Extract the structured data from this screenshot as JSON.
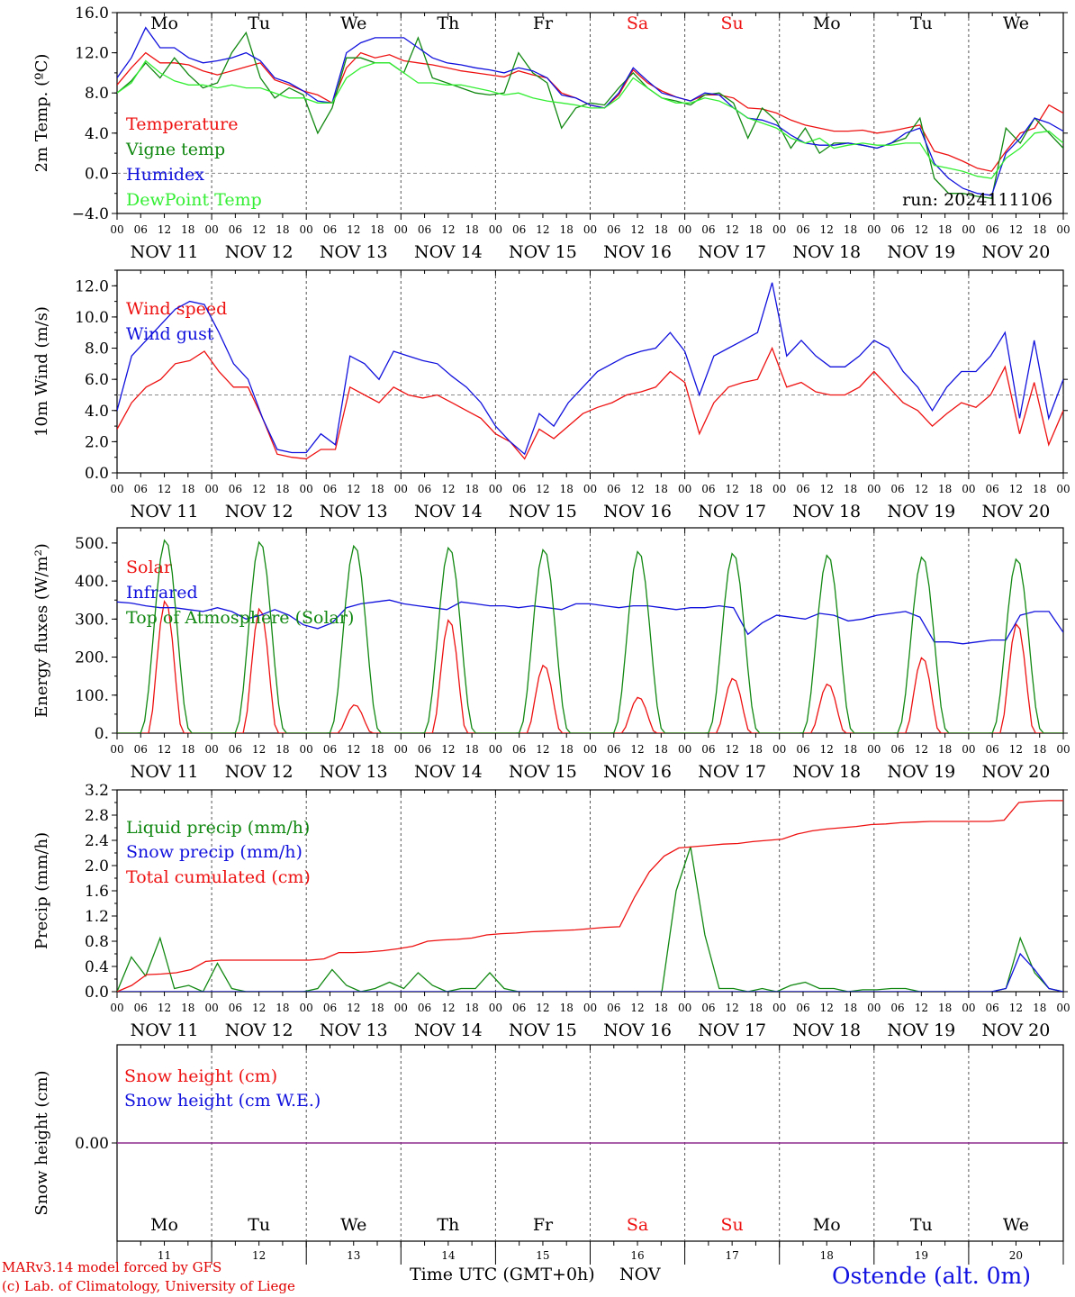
{
  "colors": {
    "red": "#ee1111",
    "green": "#118811",
    "blue": "#1111dd",
    "light_green": "#33ee33",
    "purple": "#882288",
    "axis": "#000000",
    "grid": "#555555",
    "weekend": "#ee1111"
  },
  "days": {
    "weekday": [
      "Mo",
      "Tu",
      "We",
      "Th",
      "Fr",
      "Sa",
      "Su",
      "Mo",
      "Tu",
      "We"
    ],
    "weekend_flags": [
      false,
      false,
      false,
      false,
      false,
      true,
      true,
      false,
      false,
      false
    ],
    "dates": [
      "NOV 11",
      "NOV 12",
      "NOV 13",
      "NOV 14",
      "NOV 15",
      "NOV 16",
      "NOV 17",
      "NOV 18",
      "NOV 19",
      "NOV 20"
    ],
    "day_numbers": [
      "11",
      "12",
      "13",
      "14",
      "15",
      "16",
      "17",
      "18",
      "19",
      "20"
    ],
    "hour_ticks": [
      "00",
      "06",
      "12",
      "18"
    ],
    "final_tick": "00"
  },
  "footer": {
    "line1": "MARv3.14 model forced by GFS",
    "line2": "(c) Lab. of Climatology, University of Liege",
    "xlabel": "Time UTC (GMT+0h)",
    "month": "NOV",
    "station": "Ostende (alt. 0m)"
  },
  "chart_data": [
    {
      "id": "temp",
      "type": "line",
      "ylabel": "2m Temp. (ºC)",
      "ylim": [
        -4,
        16
      ],
      "yticks": [
        "16.0",
        "12.0",
        "8.0",
        "4.0",
        "0.0",
        "−4.0"
      ],
      "ytick_values": [
        16,
        12,
        8,
        4,
        0,
        -4
      ],
      "ref_line": 0,
      "annotation": "run: 2024111106",
      "show_weekdays": true,
      "x_hours_step": 6,
      "series": [
        {
          "name": "Temperature",
          "color": "red",
          "values": [
            8.8,
            10.5,
            12.0,
            11.0,
            11.0,
            10.8,
            10.2,
            9.8,
            10.2,
            10.6,
            11.0,
            9.3,
            8.8,
            8.2,
            7.8,
            7.0,
            10.5,
            12.0,
            11.5,
            11.8,
            11.2,
            11.0,
            10.8,
            10.5,
            10.2,
            10.0,
            9.8,
            9.6,
            10.2,
            9.8,
            9.5,
            8.0,
            7.5,
            6.8,
            6.5,
            7.8,
            10.3,
            9.0,
            8.2,
            7.6,
            7.2,
            7.8,
            7.8,
            7.5,
            6.5,
            6.4,
            6.0,
            5.3,
            4.8,
            4.5,
            4.2,
            4.2,
            4.3,
            4.0,
            4.2,
            4.5,
            4.8,
            2.2,
            1.8,
            1.2,
            0.5,
            0.2,
            2.2,
            4.0,
            4.5,
            6.8,
            6.0
          ]
        },
        {
          "name": "Vigne temp",
          "color": "green",
          "values": [
            8.0,
            9.2,
            11.0,
            9.5,
            11.5,
            9.8,
            8.5,
            9.0,
            12.0,
            14.0,
            9.5,
            7.5,
            8.5,
            7.8,
            4.0,
            6.5,
            11.5,
            11.5,
            11.0,
            11.0,
            10.0,
            13.5,
            9.5,
            9.0,
            8.5,
            8.0,
            7.8,
            8.0,
            12.0,
            10.0,
            9.0,
            4.5,
            6.5,
            7.0,
            6.8,
            8.5,
            10.0,
            8.5,
            7.5,
            7.2,
            6.8,
            7.8,
            8.0,
            7.0,
            3.5,
            6.5,
            5.2,
            2.5,
            4.5,
            2.0,
            3.0,
            3.0,
            2.8,
            2.5,
            3.0,
            3.5,
            5.5,
            -0.5,
            -2.0,
            -2.0,
            -2.3,
            -2.5,
            4.5,
            3.0,
            5.5,
            4.0,
            2.5
          ]
        },
        {
          "name": "Humidex",
          "color": "blue",
          "values": [
            9.5,
            11.5,
            14.5,
            12.5,
            12.5,
            11.5,
            11.0,
            11.2,
            11.5,
            12.0,
            11.2,
            9.5,
            9.0,
            8.2,
            7.2,
            7.0,
            12.0,
            13.0,
            13.5,
            13.5,
            13.5,
            12.5,
            11.5,
            11.0,
            10.8,
            10.5,
            10.3,
            10.0,
            10.5,
            10.2,
            9.5,
            7.8,
            7.5,
            6.8,
            6.5,
            8.0,
            10.5,
            9.2,
            8.0,
            7.6,
            7.2,
            8.0,
            7.8,
            6.5,
            5.5,
            5.3,
            4.8,
            3.8,
            3.0,
            2.8,
            2.8,
            3.0,
            2.8,
            2.5,
            3.0,
            4.0,
            4.5,
            1.0,
            -0.5,
            -1.5,
            -2.0,
            -2.2,
            2.0,
            3.5,
            5.5,
            5.0,
            4.2
          ]
        },
        {
          "name": "DewPoint Temp",
          "color": "light_green",
          "values": [
            8.0,
            9.0,
            11.2,
            10.0,
            9.2,
            8.8,
            8.8,
            8.5,
            8.8,
            8.5,
            8.5,
            8.0,
            7.5,
            7.5,
            7.0,
            7.0,
            9.5,
            10.5,
            11.0,
            11.0,
            10.0,
            9.0,
            9.0,
            8.8,
            8.8,
            8.5,
            8.2,
            7.8,
            8.0,
            7.5,
            7.2,
            7.0,
            6.8,
            6.5,
            6.5,
            7.5,
            9.5,
            8.5,
            7.5,
            7.0,
            7.0,
            7.5,
            7.2,
            6.5,
            5.5,
            5.0,
            4.5,
            3.5,
            3.0,
            3.5,
            2.5,
            2.8,
            3.0,
            2.8,
            2.8,
            3.0,
            3.0,
            0.8,
            0.5,
            0.2,
            -0.3,
            -0.5,
            1.5,
            2.5,
            4.0,
            4.2,
            3.0
          ]
        }
      ]
    },
    {
      "id": "wind",
      "type": "line",
      "ylabel": "10m Wind (m/s)",
      "ylim": [
        0,
        13
      ],
      "yticks": [
        "12.0",
        "10.0",
        "8.0",
        "6.0",
        "4.0",
        "2.0",
        "0.0"
      ],
      "ytick_values": [
        12,
        10,
        8,
        6,
        4,
        2,
        0
      ],
      "ref_line": 5,
      "show_weekdays": false,
      "x_hours_step": 6,
      "series": [
        {
          "name": "Wind speed",
          "color": "red",
          "values": [
            2.8,
            4.5,
            5.5,
            6.0,
            7.0,
            7.2,
            7.8,
            6.5,
            5.5,
            5.5,
            3.5,
            1.2,
            1.0,
            0.9,
            1.5,
            1.5,
            5.5,
            5.0,
            4.5,
            5.5,
            5.0,
            4.8,
            5.0,
            4.5,
            4.0,
            3.5,
            2.5,
            2.0,
            0.9,
            2.8,
            2.2,
            3.0,
            3.8,
            4.2,
            4.5,
            5.0,
            5.2,
            5.5,
            6.5,
            5.8,
            2.5,
            4.5,
            5.5,
            5.8,
            6.0,
            8.0,
            5.5,
            5.8,
            5.2,
            5.0,
            5.0,
            5.5,
            6.5,
            5.5,
            4.5,
            4.0,
            3.0,
            3.8,
            4.5,
            4.2,
            5.0,
            6.8,
            2.5,
            5.8,
            1.8,
            4.0
          ]
        },
        {
          "name": "Wind gust",
          "color": "blue",
          "values": [
            4.0,
            7.5,
            8.5,
            9.5,
            10.5,
            11.0,
            10.8,
            9.0,
            7.0,
            6.0,
            3.5,
            1.5,
            1.3,
            1.3,
            2.5,
            1.8,
            7.5,
            7.0,
            6.0,
            7.8,
            7.5,
            7.2,
            7.0,
            6.2,
            5.5,
            4.5,
            3.0,
            2.0,
            1.2,
            3.8,
            3.0,
            4.5,
            5.5,
            6.5,
            7.0,
            7.5,
            7.8,
            8.0,
            9.0,
            7.8,
            5.0,
            7.5,
            8.0,
            8.5,
            9.0,
            12.2,
            7.5,
            8.5,
            7.5,
            6.8,
            6.8,
            7.5,
            8.5,
            8.0,
            6.5,
            5.5,
            4.0,
            5.5,
            6.5,
            6.5,
            7.5,
            9.0,
            3.5,
            8.5,
            3.5,
            6.0
          ]
        }
      ]
    },
    {
      "id": "energy",
      "type": "line",
      "ylabel": "Energy fluxes (W/m²)",
      "ylim": [
        0,
        540
      ],
      "yticks": [
        "500.",
        "400.",
        "300.",
        "200.",
        "100.",
        "0."
      ],
      "ytick_values": [
        500,
        400,
        300,
        200,
        100,
        0
      ],
      "show_weekdays": false,
      "x_hours_step": 6,
      "solar_peaks": [
        350,
        330,
        75,
        300,
        180,
        95,
        145,
        130,
        200,
        290
      ],
      "toa_peaks": [
        510,
        505,
        495,
        490,
        485,
        480,
        475,
        470,
        465,
        460
      ],
      "series": [
        {
          "name": "Solar",
          "color": "red",
          "values_note_omitted": true
        },
        {
          "name": "Infrared",
          "color": "blue",
          "values": [
            345,
            342,
            335,
            330,
            330,
            325,
            320,
            330,
            320,
            300,
            310,
            325,
            310,
            285,
            275,
            290,
            330,
            340,
            345,
            350,
            340,
            335,
            330,
            325,
            345,
            340,
            335,
            335,
            330,
            335,
            330,
            325,
            340,
            340,
            335,
            330,
            335,
            335,
            330,
            325,
            330,
            330,
            335,
            330,
            260,
            290,
            310,
            305,
            300,
            315,
            310,
            295,
            300,
            310,
            315,
            320,
            305,
            240,
            240,
            235,
            240,
            245,
            245,
            310,
            320,
            320,
            265
          ]
        },
        {
          "name": "Top of Atmosphere (Solar)",
          "color": "green",
          "values_note_omitted": true
        }
      ]
    },
    {
      "id": "precip",
      "type": "line",
      "ylabel": "Precip (mm/h)",
      "ylim": [
        0,
        3.2
      ],
      "yticks": [
        "3.2",
        "2.8",
        "2.4",
        "2.0",
        "1.6",
        "1.2",
        "0.8",
        "0.4",
        "0.0"
      ],
      "ytick_values": [
        3.2,
        2.8,
        2.4,
        2.0,
        1.6,
        1.2,
        0.8,
        0.4,
        0.0
      ],
      "show_weekdays": false,
      "x_hours_step": 6,
      "series": [
        {
          "name": "Liquid precip (mm/h)",
          "color": "green",
          "values": [
            0,
            0.55,
            0.25,
            0.85,
            0.05,
            0.1,
            0.0,
            0.45,
            0.05,
            0,
            0,
            0,
            0,
            0,
            0.05,
            0.35,
            0.1,
            0,
            0.05,
            0.15,
            0.05,
            0.3,
            0.1,
            0,
            0.05,
            0.05,
            0.3,
            0.05,
            0,
            0,
            0,
            0,
            0,
            0,
            0,
            0,
            0,
            0,
            0,
            1.6,
            2.3,
            0.9,
            0.05,
            0.05,
            0,
            0.05,
            0,
            0.1,
            0.15,
            0.05,
            0.05,
            0,
            0.03,
            0.03,
            0.05,
            0.05,
            0,
            0,
            0,
            0,
            0,
            0,
            0.05,
            0.85,
            0.3,
            0.05,
            0
          ]
        },
        {
          "name": "Snow precip (mm/h)",
          "color": "blue",
          "values": [
            0,
            0,
            0,
            0,
            0,
            0,
            0,
            0,
            0,
            0,
            0,
            0,
            0,
            0,
            0,
            0,
            0,
            0,
            0,
            0,
            0,
            0,
            0,
            0,
            0,
            0,
            0,
            0,
            0,
            0,
            0,
            0,
            0,
            0,
            0,
            0,
            0,
            0,
            0,
            0,
            0,
            0,
            0,
            0,
            0,
            0,
            0,
            0,
            0,
            0,
            0,
            0,
            0,
            0,
            0,
            0,
            0,
            0,
            0,
            0,
            0,
            0,
            0.05,
            0.6,
            0.35,
            0.05,
            0
          ]
        },
        {
          "name": "Total cumulated (cm)",
          "color": "red",
          "values": [
            0,
            0.1,
            0.27,
            0.28,
            0.3,
            0.35,
            0.48,
            0.5,
            0.5,
            0.5,
            0.5,
            0.5,
            0.5,
            0.5,
            0.52,
            0.62,
            0.62,
            0.63,
            0.65,
            0.68,
            0.72,
            0.8,
            0.82,
            0.83,
            0.85,
            0.9,
            0.92,
            0.93,
            0.95,
            0.96,
            0.97,
            0.98,
            1.0,
            1.02,
            1.03,
            1.5,
            1.9,
            2.15,
            2.28,
            2.3,
            2.32,
            2.34,
            2.35,
            2.38,
            2.4,
            2.42,
            2.5,
            2.55,
            2.58,
            2.6,
            2.62,
            2.65,
            2.66,
            2.68,
            2.69,
            2.7,
            2.7,
            2.7,
            2.7,
            2.7,
            2.72,
            3.0,
            3.02,
            3.03,
            3.03
          ]
        }
      ]
    },
    {
      "id": "snow",
      "type": "line",
      "ylabel": "Snow height (cm)",
      "ylim": [
        -1,
        1
      ],
      "yticks": [
        "0.00"
      ],
      "ytick_values": [
        0
      ],
      "show_weekdays": true,
      "show_daynums": true,
      "x_hours_step": 6,
      "series": [
        {
          "name": "Snow height (cm)",
          "color": "red",
          "values": [
            0,
            0
          ]
        },
        {
          "name": "Snow height (cm W.E.)",
          "color": "blue",
          "values": [
            0,
            0
          ]
        }
      ]
    }
  ]
}
